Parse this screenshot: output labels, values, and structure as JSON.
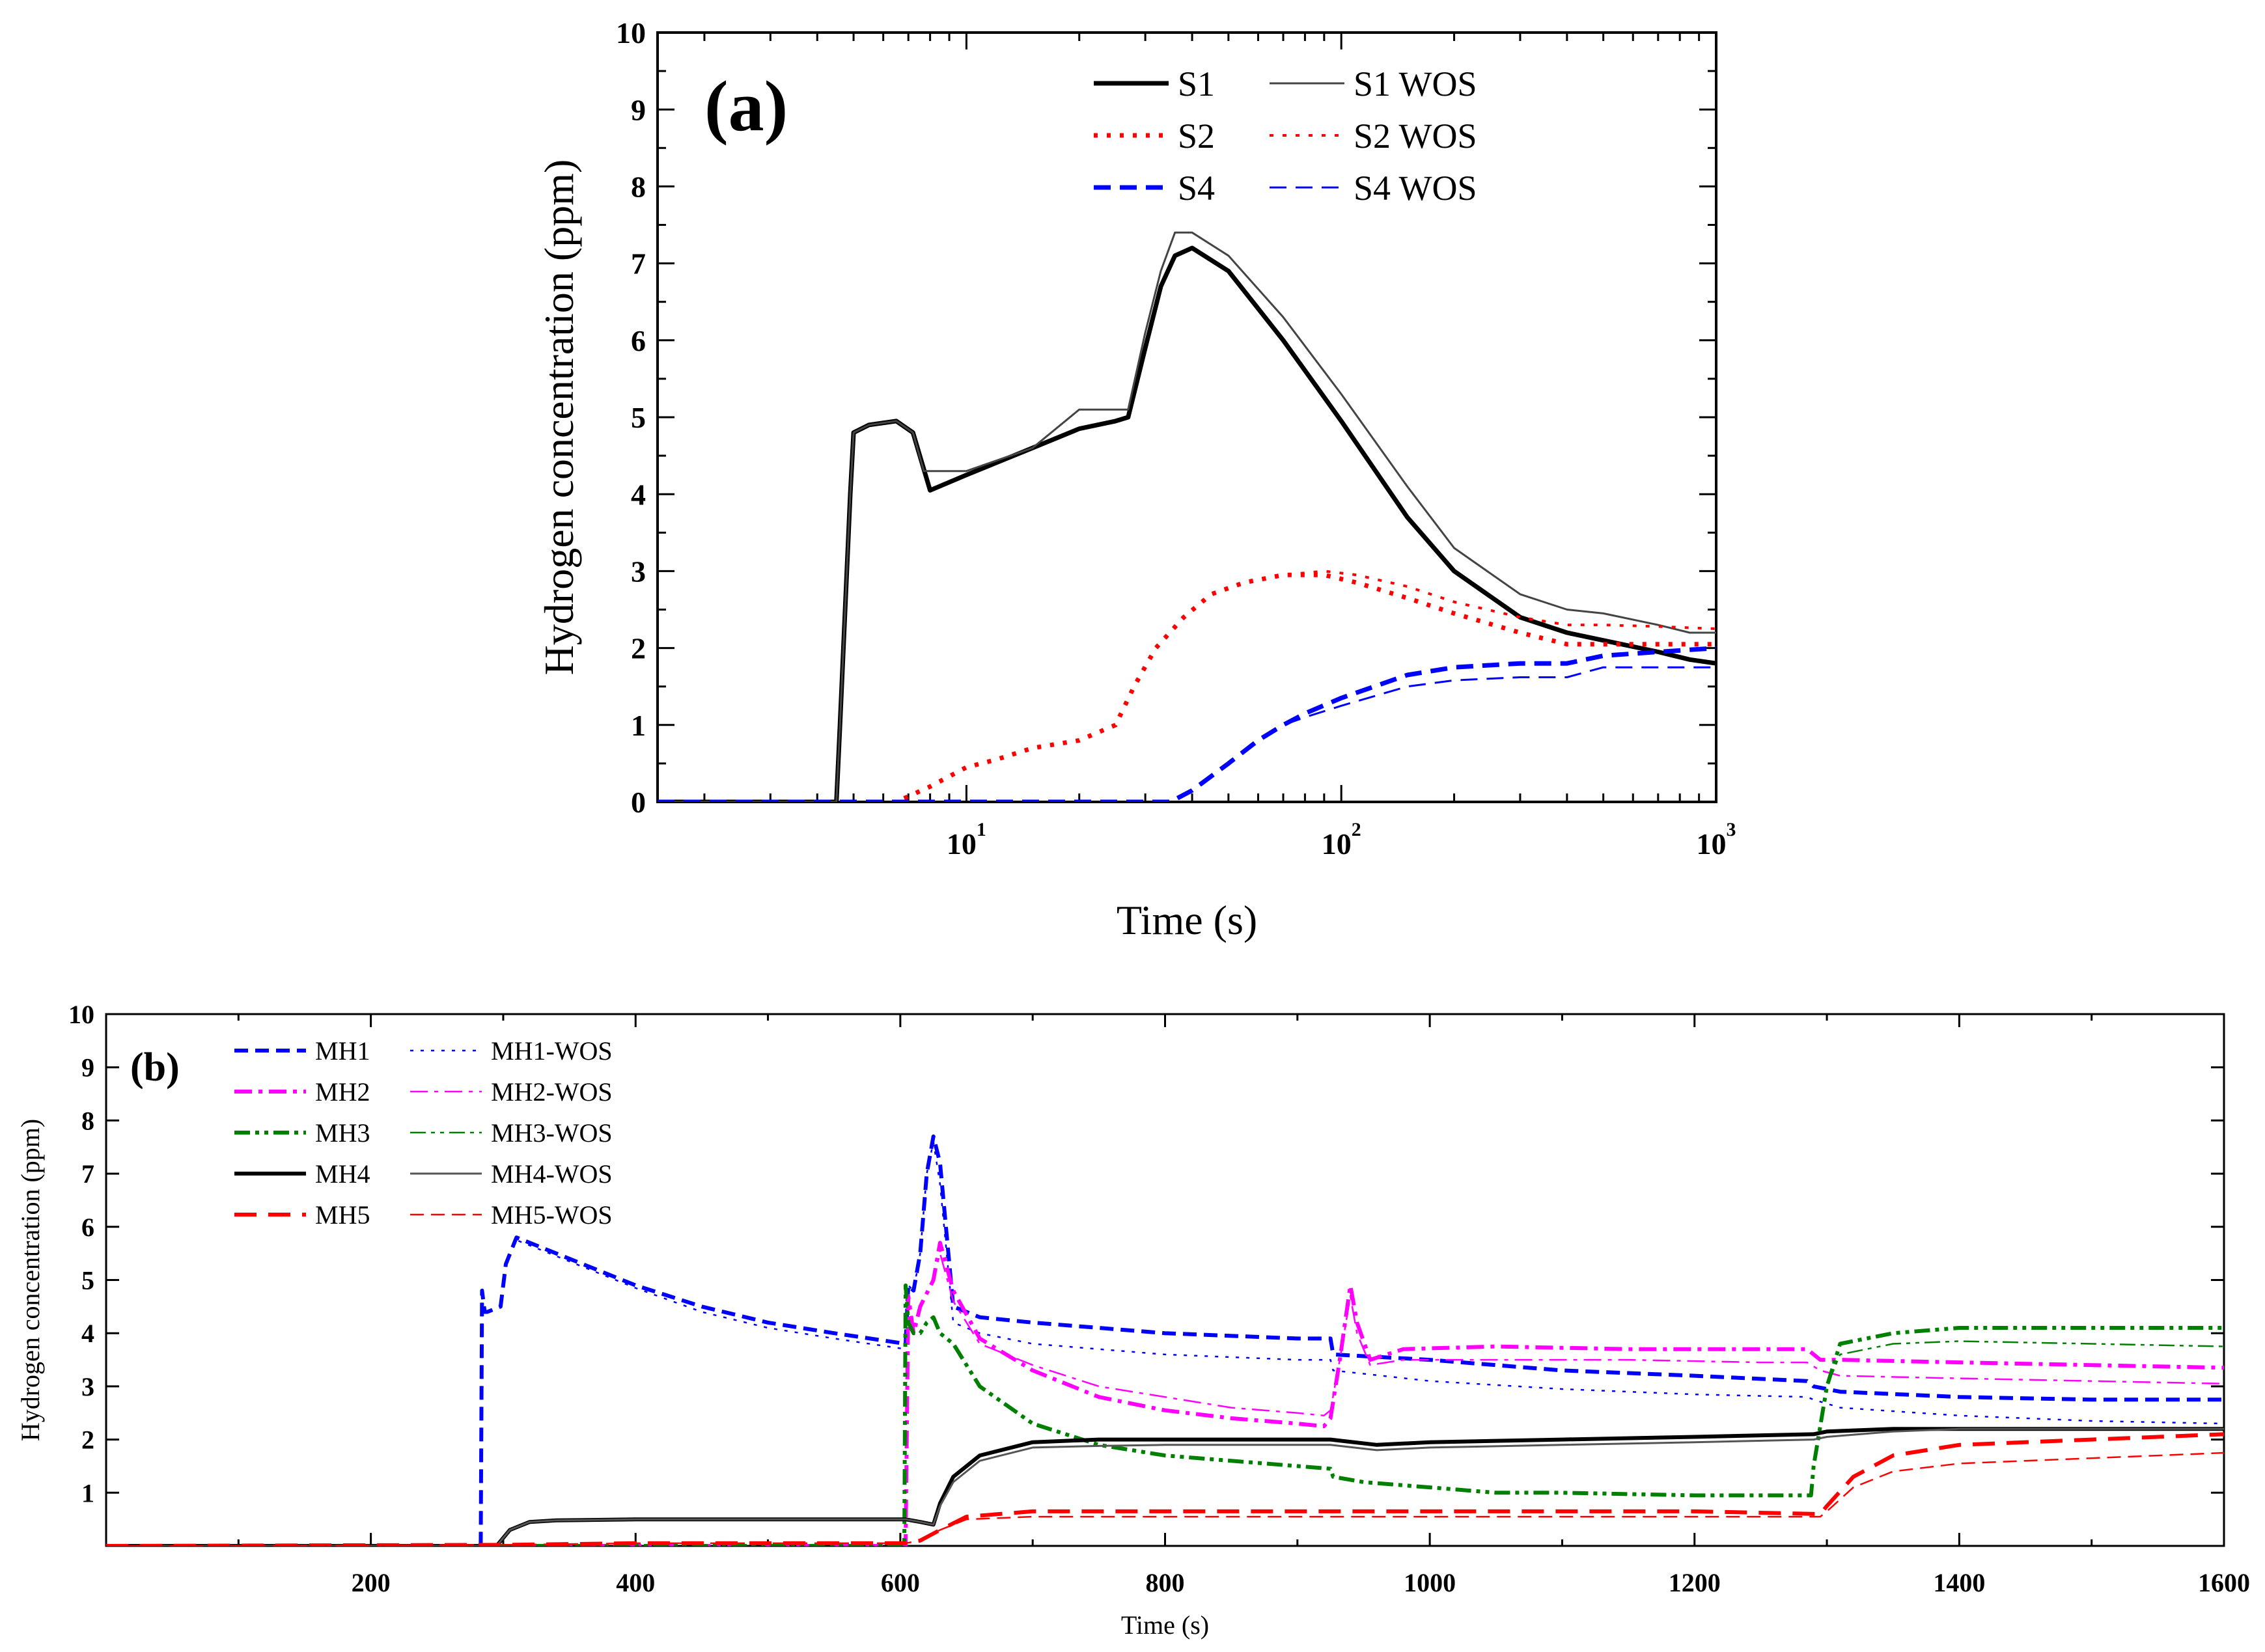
{
  "chart_data": [
    {
      "panel_label": "(a)",
      "type": "line",
      "xlabel": "Time (s)",
      "ylabel": "Hydrogen concentration (ppm)",
      "x_scale": "log",
      "xlim": [
        1.5,
        1000
      ],
      "ylim": [
        0,
        10
      ],
      "x_ticks": [
        10,
        100,
        1000
      ],
      "x_tick_labels": [
        [
          "10",
          "1"
        ],
        [
          "10",
          "2"
        ],
        [
          "10",
          "3"
        ]
      ],
      "y_ticks": [
        0,
        1,
        2,
        3,
        4,
        5,
        6,
        7,
        8,
        9,
        10
      ],
      "grid": false,
      "legend_position": "top-right",
      "series": [
        {
          "name": "S1",
          "color": "#000000",
          "style": "solid",
          "width": 7,
          "x": [
            1.5,
            4.5,
            4.6,
            4.9,
            5.0,
            5.5,
            6.5,
            7.2,
            8.0,
            10,
            15,
            20,
            25,
            27,
            30,
            33,
            36,
            40,
            50,
            70,
            100,
            150,
            200,
            300,
            400,
            500,
            700,
            850,
            1000
          ],
          "y": [
            0,
            0,
            1.0,
            4.0,
            4.8,
            4.9,
            4.95,
            4.8,
            4.05,
            4.25,
            4.6,
            4.85,
            4.95,
            5.0,
            5.9,
            6.7,
            7.1,
            7.2,
            6.9,
            6.0,
            4.95,
            3.7,
            3.0,
            2.4,
            2.2,
            2.1,
            1.95,
            1.85,
            1.8
          ]
        },
        {
          "name": "S1 WOS",
          "color": "#444444",
          "style": "solid",
          "width": 3,
          "x": [
            1.5,
            4.5,
            4.6,
            4.9,
            5.0,
            5.5,
            6.5,
            7.2,
            7.7,
            10,
            15,
            20,
            25,
            27,
            30,
            33,
            36,
            40,
            50,
            70,
            100,
            150,
            200,
            300,
            400,
            500,
            700,
            850,
            1000
          ],
          "y": [
            0,
            0,
            1.0,
            4.0,
            4.8,
            4.9,
            4.95,
            4.8,
            4.3,
            4.3,
            4.6,
            5.1,
            5.1,
            5.1,
            6.1,
            6.9,
            7.4,
            7.4,
            7.1,
            6.3,
            5.3,
            4.1,
            3.3,
            2.7,
            2.5,
            2.45,
            2.3,
            2.2,
            2.2
          ]
        },
        {
          "name": "S2",
          "color": "#ff0000",
          "style": "dot",
          "width": 7,
          "x": [
            1.5,
            6.5,
            8,
            10,
            12,
            15,
            20,
            25,
            28,
            32,
            38,
            45,
            55,
            70,
            90,
            110,
            150,
            200,
            300,
            400,
            500,
            700,
            1000
          ],
          "y": [
            0,
            0,
            0.2,
            0.45,
            0.55,
            0.7,
            0.8,
            1.0,
            1.5,
            2.0,
            2.4,
            2.7,
            2.85,
            2.95,
            2.95,
            2.85,
            2.65,
            2.45,
            2.2,
            2.05,
            2.05,
            2.05,
            2.05
          ]
        },
        {
          "name": "S2 WOS",
          "color": "#ff0000",
          "style": "dot",
          "width": 4,
          "x": [
            1.5,
            6.5,
            8,
            10,
            12,
            15,
            20,
            25,
            28,
            32,
            38,
            45,
            55,
            70,
            90,
            110,
            150,
            200,
            300,
            400,
            500,
            700,
            1000
          ],
          "y": [
            0,
            0,
            0.2,
            0.45,
            0.55,
            0.7,
            0.8,
            1.0,
            1.5,
            2.0,
            2.4,
            2.7,
            2.85,
            2.95,
            3.0,
            2.95,
            2.8,
            2.6,
            2.4,
            2.3,
            2.3,
            2.28,
            2.25
          ]
        },
        {
          "name": "S4",
          "color": "#0000ff",
          "style": "dash",
          "width": 7,
          "x": [
            1.5,
            35,
            40,
            50,
            60,
            70,
            80,
            100,
            150,
            200,
            300,
            400,
            500,
            700,
            1000
          ],
          "y": [
            0,
            0,
            0.15,
            0.5,
            0.8,
            1.0,
            1.15,
            1.35,
            1.65,
            1.75,
            1.8,
            1.8,
            1.9,
            1.95,
            2.0
          ]
        },
        {
          "name": "S4 WOS",
          "color": "#0000ff",
          "style": "dash",
          "width": 3,
          "x": [
            1.5,
            35,
            40,
            50,
            60,
            70,
            80,
            100,
            150,
            200,
            300,
            400,
            500,
            700,
            1000
          ],
          "y": [
            0,
            0,
            0.15,
            0.5,
            0.8,
            1.0,
            1.1,
            1.25,
            1.5,
            1.58,
            1.62,
            1.62,
            1.75,
            1.75,
            1.75
          ]
        }
      ]
    },
    {
      "panel_label": "(b)",
      "type": "line",
      "xlabel": "Time (s)",
      "ylabel": "Hydrogen concentration (ppm)",
      "x_scale": "linear",
      "xlim": [
        0,
        1600
      ],
      "ylim": [
        0,
        10
      ],
      "x_ticks": [
        200,
        400,
        600,
        800,
        1000,
        1200,
        1400,
        1600
      ],
      "y_ticks": [
        1,
        2,
        3,
        4,
        5,
        6,
        7,
        8,
        9,
        10
      ],
      "grid": false,
      "legend_position": "top-left",
      "series": [
        {
          "name": "MH1",
          "color": "#0000ff",
          "style": "dash",
          "width": 6,
          "x": [
            0,
            283,
            284,
            286,
            288,
            298,
            302,
            310,
            350,
            400,
            450,
            500,
            550,
            604,
            606,
            610,
            615,
            620,
            625,
            630,
            640,
            660,
            700,
            800,
            900,
            925,
            927,
            1000,
            1100,
            1200,
            1285,
            1290,
            1310,
            1400,
            1500,
            1600
          ],
          "y": [
            0,
            0,
            4.8,
            4.4,
            4.4,
            4.5,
            5.3,
            5.8,
            5.4,
            4.9,
            4.5,
            4.2,
            4.0,
            3.8,
            4.9,
            4.8,
            5.5,
            7.0,
            7.7,
            7.2,
            4.5,
            4.3,
            4.2,
            4.0,
            3.9,
            3.9,
            3.6,
            3.5,
            3.3,
            3.2,
            3.1,
            3.0,
            2.9,
            2.8,
            2.75,
            2.75
          ]
        },
        {
          "name": "MH1-WOS",
          "color": "#0000ff",
          "style": "dot",
          "width": 2.5,
          "x": [
            0,
            283,
            284,
            286,
            288,
            298,
            302,
            310,
            350,
            400,
            450,
            500,
            550,
            604,
            606,
            610,
            615,
            620,
            625,
            630,
            640,
            660,
            700,
            800,
            900,
            925,
            927,
            1000,
            1100,
            1200,
            1285,
            1290,
            1310,
            1400,
            1500,
            1600
          ],
          "y": [
            0,
            0,
            4.8,
            4.4,
            4.4,
            4.5,
            5.3,
            5.75,
            5.35,
            4.85,
            4.4,
            4.1,
            3.9,
            3.7,
            4.9,
            4.8,
            5.5,
            7.0,
            7.6,
            6.8,
            4.2,
            4.0,
            3.8,
            3.6,
            3.5,
            3.5,
            3.3,
            3.1,
            2.95,
            2.85,
            2.8,
            2.75,
            2.6,
            2.45,
            2.35,
            2.3
          ]
        },
        {
          "name": "MH2",
          "color": "#ff00ff",
          "style": "dashdot",
          "width": 6,
          "x": [
            0,
            604,
            606,
            610,
            615,
            625,
            630,
            640,
            660,
            700,
            750,
            800,
            850,
            900,
            920,
            925,
            932,
            940,
            945,
            955,
            980,
            1050,
            1150,
            1250,
            1285,
            1295,
            1310,
            1400,
            1500,
            1600
          ],
          "y": [
            0,
            0,
            4.7,
            4.0,
            4.5,
            5.0,
            5.7,
            4.8,
            3.9,
            3.3,
            2.8,
            2.55,
            2.4,
            2.3,
            2.25,
            2.4,
            3.5,
            4.9,
            4.2,
            3.5,
            3.7,
            3.75,
            3.7,
            3.7,
            3.7,
            3.5,
            3.5,
            3.45,
            3.4,
            3.35
          ]
        },
        {
          "name": "MH2-WOS",
          "color": "#ff00ff",
          "style": "dashdot",
          "width": 2.5,
          "x": [
            0,
            604,
            606,
            610,
            615,
            625,
            630,
            640,
            660,
            700,
            750,
            800,
            850,
            900,
            920,
            925,
            932,
            940,
            945,
            955,
            980,
            1050,
            1150,
            1250,
            1285,
            1295,
            1310,
            1400,
            1500,
            1600
          ],
          "y": [
            0,
            0,
            4.7,
            4.0,
            4.5,
            5.0,
            5.5,
            4.6,
            3.8,
            3.4,
            3.0,
            2.8,
            2.6,
            2.5,
            2.45,
            2.55,
            3.5,
            4.7,
            4.0,
            3.4,
            3.5,
            3.5,
            3.5,
            3.45,
            3.45,
            3.3,
            3.2,
            3.15,
            3.1,
            3.05
          ]
        },
        {
          "name": "MH3",
          "color": "#008000",
          "style": "dashdotdot",
          "width": 6,
          "x": [
            0,
            603,
            604,
            606,
            610,
            615,
            620,
            625,
            630,
            640,
            660,
            700,
            750,
            800,
            850,
            900,
            925,
            927,
            950,
            1000,
            1050,
            1100,
            1200,
            1288,
            1290,
            1300,
            1310,
            1350,
            1400,
            1500,
            1600
          ],
          "y": [
            0,
            0,
            4.9,
            4.2,
            4.0,
            4.0,
            4.2,
            4.3,
            4.0,
            3.8,
            3.0,
            2.3,
            1.9,
            1.7,
            1.6,
            1.5,
            1.45,
            1.3,
            1.2,
            1.1,
            1.0,
            1.0,
            0.95,
            0.95,
            1.5,
            3.0,
            3.8,
            4.0,
            4.1,
            4.1,
            4.1
          ]
        },
        {
          "name": "MH3-WOS",
          "color": "#008000",
          "style": "dashdotdot",
          "width": 2.5,
          "x": [
            0,
            603,
            604,
            606,
            610,
            615,
            620,
            625,
            630,
            640,
            660,
            700,
            750,
            800,
            850,
            900,
            925,
            927,
            950,
            1000,
            1050,
            1100,
            1200,
            1288,
            1290,
            1300,
            1310,
            1350,
            1400,
            1500,
            1600
          ],
          "y": [
            0,
            0,
            4.9,
            4.2,
            4.0,
            4.0,
            4.2,
            4.3,
            4.0,
            3.8,
            3.0,
            2.3,
            1.9,
            1.7,
            1.6,
            1.5,
            1.45,
            1.3,
            1.2,
            1.1,
            1.0,
            1.0,
            0.95,
            0.95,
            1.5,
            3.0,
            3.6,
            3.8,
            3.85,
            3.8,
            3.75
          ]
        },
        {
          "name": "MH4",
          "color": "#000000",
          "style": "solid",
          "width": 6,
          "x": [
            0,
            295,
            305,
            320,
            340,
            400,
            500,
            604,
            615,
            625,
            630,
            640,
            660,
            700,
            750,
            800,
            900,
            925,
            960,
            1000,
            1100,
            1200,
            1290,
            1300,
            1350,
            1400,
            1500,
            1600
          ],
          "y": [
            0,
            0,
            0.3,
            0.45,
            0.48,
            0.5,
            0.5,
            0.5,
            0.45,
            0.4,
            0.8,
            1.3,
            1.7,
            1.95,
            2.0,
            2.0,
            2.0,
            2.0,
            1.9,
            1.95,
            2.0,
            2.05,
            2.1,
            2.15,
            2.2,
            2.2,
            2.2,
            2.2
          ]
        },
        {
          "name": "MH4-WOS",
          "color": "#555555",
          "style": "solid",
          "width": 3,
          "x": [
            0,
            295,
            305,
            320,
            340,
            400,
            500,
            604,
            615,
            625,
            630,
            640,
            660,
            700,
            750,
            800,
            900,
            925,
            960,
            1000,
            1100,
            1200,
            1290,
            1300,
            1350,
            1400,
            1500,
            1600
          ],
          "y": [
            0,
            0,
            0.3,
            0.45,
            0.48,
            0.5,
            0.5,
            0.5,
            0.45,
            0.4,
            0.75,
            1.2,
            1.6,
            1.85,
            1.88,
            1.9,
            1.9,
            1.9,
            1.8,
            1.85,
            1.9,
            1.95,
            2.0,
            2.05,
            2.15,
            2.2,
            2.2,
            2.2
          ]
        },
        {
          "name": "MH5",
          "color": "#ff0000",
          "style": "longdash",
          "width": 6,
          "x": [
            0,
            300,
            400,
            500,
            604,
            615,
            630,
            650,
            700,
            800,
            900,
            1000,
            1100,
            1200,
            1295,
            1300,
            1320,
            1350,
            1400,
            1500,
            1600
          ],
          "y": [
            0,
            0.02,
            0.05,
            0.05,
            0.05,
            0.1,
            0.3,
            0.55,
            0.65,
            0.65,
            0.65,
            0.65,
            0.65,
            0.65,
            0.6,
            0.75,
            1.3,
            1.7,
            1.9,
            2.0,
            2.1
          ]
        },
        {
          "name": "MH5-WOS",
          "color": "#ff0000",
          "style": "dash",
          "width": 2.5,
          "x": [
            0,
            300,
            400,
            500,
            604,
            615,
            630,
            650,
            700,
            800,
            900,
            1000,
            1100,
            1200,
            1295,
            1300,
            1320,
            1350,
            1400,
            1500,
            1600
          ],
          "y": [
            0,
            0.02,
            0.05,
            0.05,
            0.05,
            0.1,
            0.3,
            0.5,
            0.55,
            0.55,
            0.55,
            0.55,
            0.55,
            0.55,
            0.55,
            0.65,
            1.1,
            1.4,
            1.55,
            1.65,
            1.75
          ]
        }
      ]
    }
  ]
}
